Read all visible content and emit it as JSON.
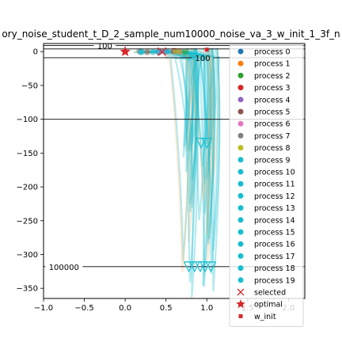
{
  "chart_data": {
    "type": "line",
    "title": "ory_noise_student_t_D_2_sample_num10000_noise_va_3_w_init_1_3f_n",
    "xlabel": "",
    "ylabel": "",
    "xlim": [
      -1.0,
      2.2
    ],
    "ylim": [
      -365,
      12
    ],
    "xticks": [
      -1.0,
      -0.5,
      0.0,
      0.5,
      1.0,
      1.5,
      2.0
    ],
    "xtick_labels": [
      "−1.0",
      "−0.5",
      "0.0",
      "0.5",
      "1.0",
      "1.5",
      "2.0"
    ],
    "yticks": [
      0,
      -50,
      -100,
      -150,
      -200,
      -250,
      -300,
      -350
    ],
    "ytick_labels": [
      "0",
      "−50",
      "−100",
      "−150",
      "−200",
      "−250",
      "−300",
      "−350"
    ],
    "grid": false,
    "legend_position": "right",
    "contour_lines": [
      {
        "label": "100",
        "y": 9,
        "label_x": -0.25
      },
      {
        "label": "100",
        "y": -9,
        "label_x": 0.95
      },
      {
        "label": "",
        "y": 4,
        "label_x": null
      },
      {
        "label": "",
        "y": -100,
        "label_x": null
      },
      {
        "label": "100000",
        "y": -318,
        "label_x": -0.75
      }
    ],
    "series": [
      {
        "name": "process 0",
        "color": "#1f77b4",
        "marker": "circle"
      },
      {
        "name": "process 1",
        "color": "#ff7f0e",
        "marker": "circle"
      },
      {
        "name": "process 2",
        "color": "#2ca02c",
        "marker": "circle"
      },
      {
        "name": "process 3",
        "color": "#d62728",
        "marker": "circle"
      },
      {
        "name": "process 4",
        "color": "#9467bd",
        "marker": "circle"
      },
      {
        "name": "process 5",
        "color": "#8c564b",
        "marker": "circle"
      },
      {
        "name": "process 6",
        "color": "#e377c2",
        "marker": "circle"
      },
      {
        "name": "process 7",
        "color": "#7f7f7f",
        "marker": "circle"
      },
      {
        "name": "process 8",
        "color": "#bcbd22",
        "marker": "circle"
      },
      {
        "name": "process 9",
        "color": "#17becf",
        "marker": "circle"
      },
      {
        "name": "process 10",
        "color": "#17becf",
        "marker": "circle"
      },
      {
        "name": "process 11",
        "color": "#17becf",
        "marker": "circle"
      },
      {
        "name": "process 12",
        "color": "#17becf",
        "marker": "circle"
      },
      {
        "name": "process 13",
        "color": "#17becf",
        "marker": "circle"
      },
      {
        "name": "process 14",
        "color": "#17becf",
        "marker": "circle"
      },
      {
        "name": "process 15",
        "color": "#17becf",
        "marker": "circle"
      },
      {
        "name": "process 16",
        "color": "#17becf",
        "marker": "circle"
      },
      {
        "name": "process 17",
        "color": "#17becf",
        "marker": "circle"
      },
      {
        "name": "process 18",
        "color": "#17becf",
        "marker": "circle"
      },
      {
        "name": "process 19",
        "color": "#17becf",
        "marker": "circle"
      },
      {
        "name": "selected",
        "color": "#d62728",
        "marker": "x"
      },
      {
        "name": "optimal",
        "color": "#d62728",
        "marker": "star"
      },
      {
        "name": "w_init",
        "color": "#d62728",
        "marker": "square"
      }
    ],
    "points": {
      "selected": [
        [
          0.45,
          0.0
        ]
      ],
      "optimal": [
        [
          0.0,
          0.0
        ]
      ],
      "w_init": [
        [
          1.0,
          3.0
        ]
      ],
      "end_markers": [
        [
          0.93,
          -135
        ],
        [
          1.0,
          -135
        ],
        [
          0.78,
          -318
        ],
        [
          0.85,
          -318
        ],
        [
          0.92,
          -318
        ],
        [
          0.98,
          -318
        ],
        [
          1.05,
          -318
        ]
      ]
    }
  }
}
